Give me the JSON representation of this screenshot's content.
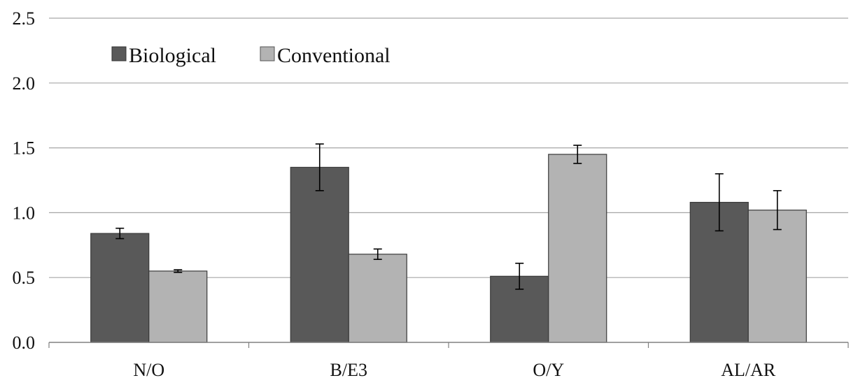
{
  "chart_data": {
    "type": "bar",
    "categories": [
      "N/O",
      "B/E3",
      "O/Y",
      "AL/AR"
    ],
    "series": [
      {
        "name": "Biological",
        "color": "#595959",
        "values": [
          0.84,
          1.35,
          0.51,
          1.08
        ],
        "errors": [
          0.04,
          0.18,
          0.1,
          0.22
        ]
      },
      {
        "name": "Conventional",
        "color": "#b3b3b3",
        "values": [
          0.55,
          0.68,
          1.45,
          1.02
        ],
        "errors": [
          0.01,
          0.04,
          0.07,
          0.15
        ]
      }
    ],
    "yticks": [
      "0.0",
      "0.5",
      "1.0",
      "1.5",
      "2.0",
      "2.5"
    ],
    "ylim": [
      0,
      2.5
    ],
    "grid": true,
    "legend_position": "top-left"
  }
}
